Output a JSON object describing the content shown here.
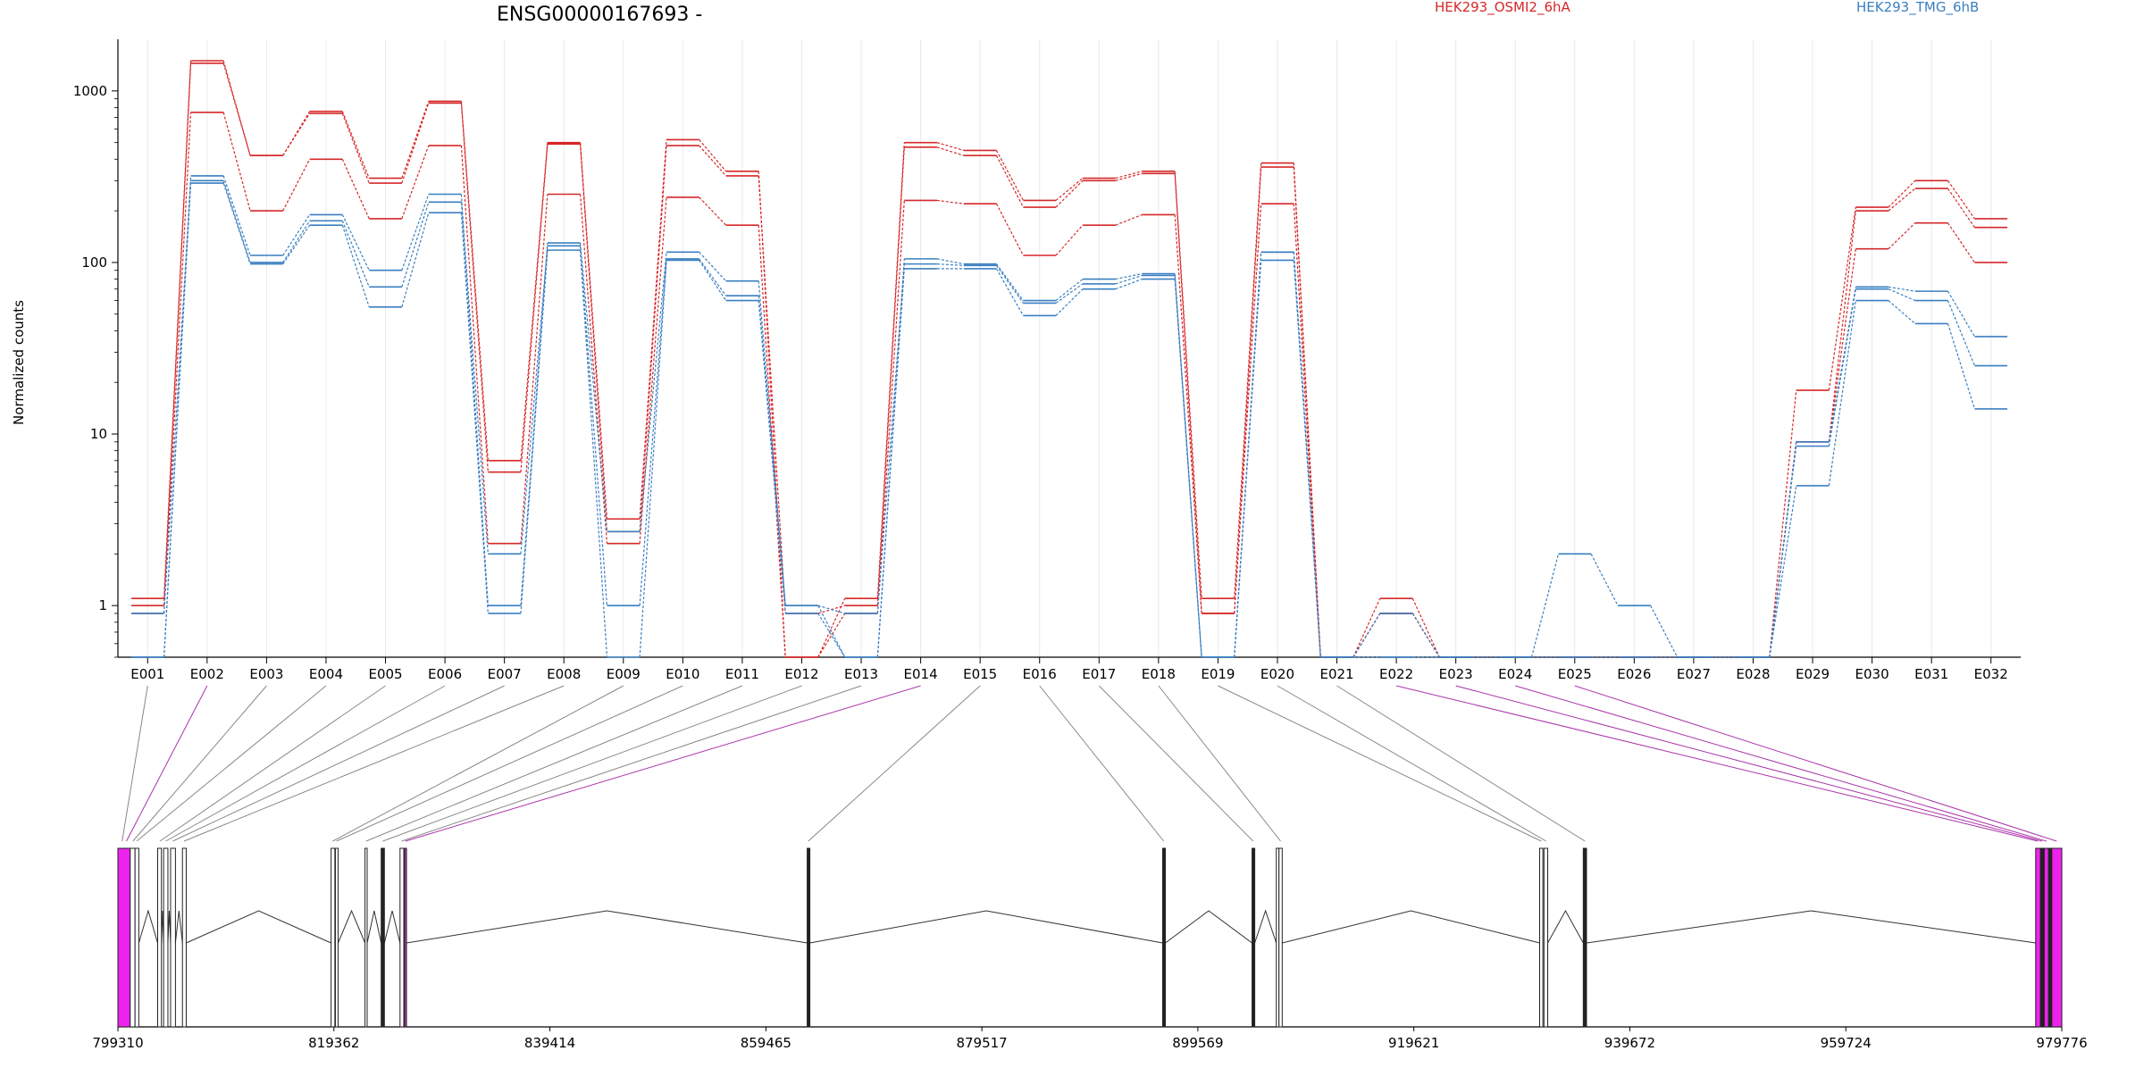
{
  "chart_data": {
    "type": "line",
    "title": "ENSG00000167693 -",
    "ylabel": "Normalized counts",
    "yscale": "log",
    "ylim": [
      0.5,
      2000
    ],
    "yticks": [
      1,
      10,
      100,
      1000
    ],
    "ytick_labels": [
      "1",
      "10",
      "100",
      "1000"
    ],
    "categories": [
      "E001",
      "E002",
      "E003",
      "E004",
      "E005",
      "E006",
      "E007",
      "E008",
      "E009",
      "E010",
      "E011",
      "E012",
      "E013",
      "E014",
      "E015",
      "E016",
      "E017",
      "E018",
      "E019",
      "E020",
      "E021",
      "E022",
      "E023",
      "E024",
      "E025",
      "E026",
      "E027",
      "E028",
      "E029",
      "E030",
      "E031",
      "E032"
    ],
    "legend": [
      {
        "label": "HEK293_OSMI2_6hA",
        "color": "#d62728"
      },
      {
        "label": "HEK293_TMG_6hB",
        "color": "#3a7fc1"
      }
    ],
    "series": [
      {
        "group": "HEK293_OSMI2_6hA",
        "color": "#d62728",
        "values": [
          1.1,
          1500,
          420,
          760,
          310,
          870,
          7,
          500,
          3.2,
          520,
          340,
          0.5,
          1.1,
          500,
          450,
          230,
          310,
          340,
          1.1,
          380,
          0.5,
          1.1,
          0.5,
          0.5,
          0.5,
          0.5,
          0.5,
          0.5,
          18,
          210,
          300,
          180
        ]
      },
      {
        "group": "HEK293_OSMI2_6hA",
        "color": "#d62728",
        "values": [
          1,
          1450,
          420,
          740,
          290,
          850,
          6,
          490,
          2.7,
          480,
          320,
          0.9,
          1,
          470,
          420,
          210,
          300,
          330,
          0.9,
          360,
          0.5,
          0.9,
          0.5,
          0.5,
          0.5,
          0.5,
          0.5,
          0.5,
          9,
          200,
          270,
          160
        ]
      },
      {
        "group": "HEK293_OSMI2_6hA",
        "color": "#d62728",
        "values": [
          0.9,
          750,
          200,
          400,
          180,
          480,
          2.3,
          250,
          2.3,
          240,
          165,
          0.5,
          0.9,
          230,
          220,
          110,
          165,
          190,
          0.9,
          220,
          0.5,
          0.9,
          0.5,
          0.5,
          0.5,
          0.5,
          0.5,
          0.5,
          9,
          120,
          170,
          100
        ]
      },
      {
        "group": "HEK293_TMG_6hB",
        "color": "#3a7fc1",
        "values": [
          0.5,
          320,
          110,
          190,
          90,
          250,
          1,
          130,
          2.7,
          115,
          78,
          1,
          0.5,
          105,
          98,
          60,
          80,
          86,
          0.5,
          115,
          0.5,
          0.5,
          0.5,
          0.5,
          2,
          1,
          0.5,
          0.5,
          9,
          72,
          68,
          37
        ]
      },
      {
        "group": "HEK293_TMG_6hB",
        "color": "#3a7fc1",
        "values": [
          0.9,
          300,
          100,
          175,
          72,
          225,
          2,
          125,
          1,
          105,
          64,
          1,
          0.9,
          98,
          96,
          58,
          75,
          84,
          0.5,
          115,
          0.5,
          0.9,
          0.5,
          0.5,
          0.5,
          0.5,
          0.5,
          0.5,
          8.5,
          70,
          60,
          25
        ]
      },
      {
        "group": "HEK293_TMG_6hB",
        "color": "#3a7fc1",
        "values": [
          0.5,
          290,
          98,
          165,
          55,
          195,
          0.9,
          118,
          0.5,
          103,
          60,
          0.9,
          0.5,
          92,
          92,
          49,
          70,
          80,
          0.5,
          103,
          0.5,
          0.5,
          0.5,
          0.5,
          0.5,
          0.5,
          0.5,
          0.5,
          5,
          60,
          44,
          14
        ]
      }
    ],
    "genomic_axis": {
      "tick_labels": [
        "799310",
        "819362",
        "839414",
        "859465",
        "879517",
        "899569",
        "919621",
        "939672",
        "959724",
        "979776"
      ],
      "range": [
        799310,
        979776
      ],
      "exons": [
        {
          "start": 799310,
          "end": 800450,
          "color": "#ee22ee"
        },
        {
          "start": 800450,
          "end": 800900,
          "color": "#ffffff"
        },
        {
          "start": 800900,
          "end": 801250,
          "color": "#ffffff"
        },
        {
          "start": 803000,
          "end": 803350,
          "color": "#ffffff"
        },
        {
          "start": 803550,
          "end": 803950,
          "color": "#ffffff"
        },
        {
          "start": 804200,
          "end": 804650,
          "color": "#ffffff"
        },
        {
          "start": 805300,
          "end": 805650,
          "color": "#ffffff"
        },
        {
          "start": 819100,
          "end": 819450,
          "color": "#ffffff"
        },
        {
          "start": 819500,
          "end": 819750,
          "color": "#ffffff"
        },
        {
          "start": 822250,
          "end": 822450,
          "color": "#ffffff"
        },
        {
          "start": 823750,
          "end": 824050,
          "color": "#222222"
        },
        {
          "start": 825500,
          "end": 825850,
          "color": "#ffffff"
        },
        {
          "start": 825900,
          "end": 826100,
          "color": "#aa33aa"
        },
        {
          "start": 863300,
          "end": 863550,
          "color": "#222222"
        },
        {
          "start": 896300,
          "end": 896550,
          "color": "#222222"
        },
        {
          "start": 904600,
          "end": 904850,
          "color": "#222222"
        },
        {
          "start": 906850,
          "end": 907100,
          "color": "#ffffff"
        },
        {
          "start": 907100,
          "end": 907400,
          "color": "#ffffff"
        },
        {
          "start": 931300,
          "end": 931600,
          "color": "#ffffff"
        },
        {
          "start": 931700,
          "end": 932050,
          "color": "#ffffff"
        },
        {
          "start": 935350,
          "end": 935650,
          "color": "#222222"
        },
        {
          "start": 977350,
          "end": 977800,
          "color": "#ee22ee"
        },
        {
          "start": 977800,
          "end": 978100,
          "color": "#222222"
        },
        {
          "start": 978150,
          "end": 978550,
          "color": "#ee22ee"
        },
        {
          "start": 978550,
          "end": 978850,
          "color": "#222222"
        },
        {
          "start": 978850,
          "end": 979776,
          "color": "#ee22ee"
        }
      ],
      "introns": [
        [
          801250,
          803000
        ],
        [
          803350,
          803550
        ],
        [
          803950,
          804200
        ],
        [
          804650,
          805300
        ],
        [
          805650,
          819100
        ],
        [
          819750,
          822250
        ],
        [
          822450,
          823750
        ],
        [
          824050,
          825500
        ],
        [
          826100,
          863300
        ],
        [
          863550,
          896300
        ],
        [
          896550,
          904600
        ],
        [
          904850,
          906850
        ],
        [
          907400,
          931300
        ],
        [
          932050,
          935350
        ],
        [
          935650,
          977350
        ],
        [
          978100,
          978150
        ],
        [
          978550,
          978850
        ]
      ],
      "exon_links": [
        {
          "pos": 799700,
          "color": "#888888"
        },
        {
          "pos": 800100,
          "color": "#aa33aa"
        },
        {
          "pos": 800700,
          "color": "#888888"
        },
        {
          "pos": 801050,
          "color": "#888888"
        },
        {
          "pos": 803200,
          "color": "#888888"
        },
        {
          "pos": 803750,
          "color": "#888888"
        },
        {
          "pos": 804400,
          "color": "#888888"
        },
        {
          "pos": 805450,
          "color": "#888888"
        },
        {
          "pos": 819250,
          "color": "#888888"
        },
        {
          "pos": 819600,
          "color": "#888888"
        },
        {
          "pos": 822350,
          "color": "#888888"
        },
        {
          "pos": 823900,
          "color": "#888888"
        },
        {
          "pos": 825650,
          "color": "#888888"
        },
        {
          "pos": 826000,
          "color": "#aa33aa"
        },
        {
          "pos": 863400,
          "color": "#888888"
        },
        {
          "pos": 896400,
          "color": "#888888"
        },
        {
          "pos": 904700,
          "color": "#888888"
        },
        {
          "pos": 907250,
          "color": "#888888"
        },
        {
          "pos": 931450,
          "color": "#888888"
        },
        {
          "pos": 931900,
          "color": "#888888"
        },
        {
          "pos": 935500,
          "color": "#888888"
        },
        {
          "pos": 977550,
          "color": "#aa33aa"
        },
        {
          "pos": 977950,
          "color": "#aa33aa"
        },
        {
          "pos": 978350,
          "color": "#aa33aa"
        },
        {
          "pos": 979300,
          "color": "#aa33aa"
        }
      ]
    }
  }
}
